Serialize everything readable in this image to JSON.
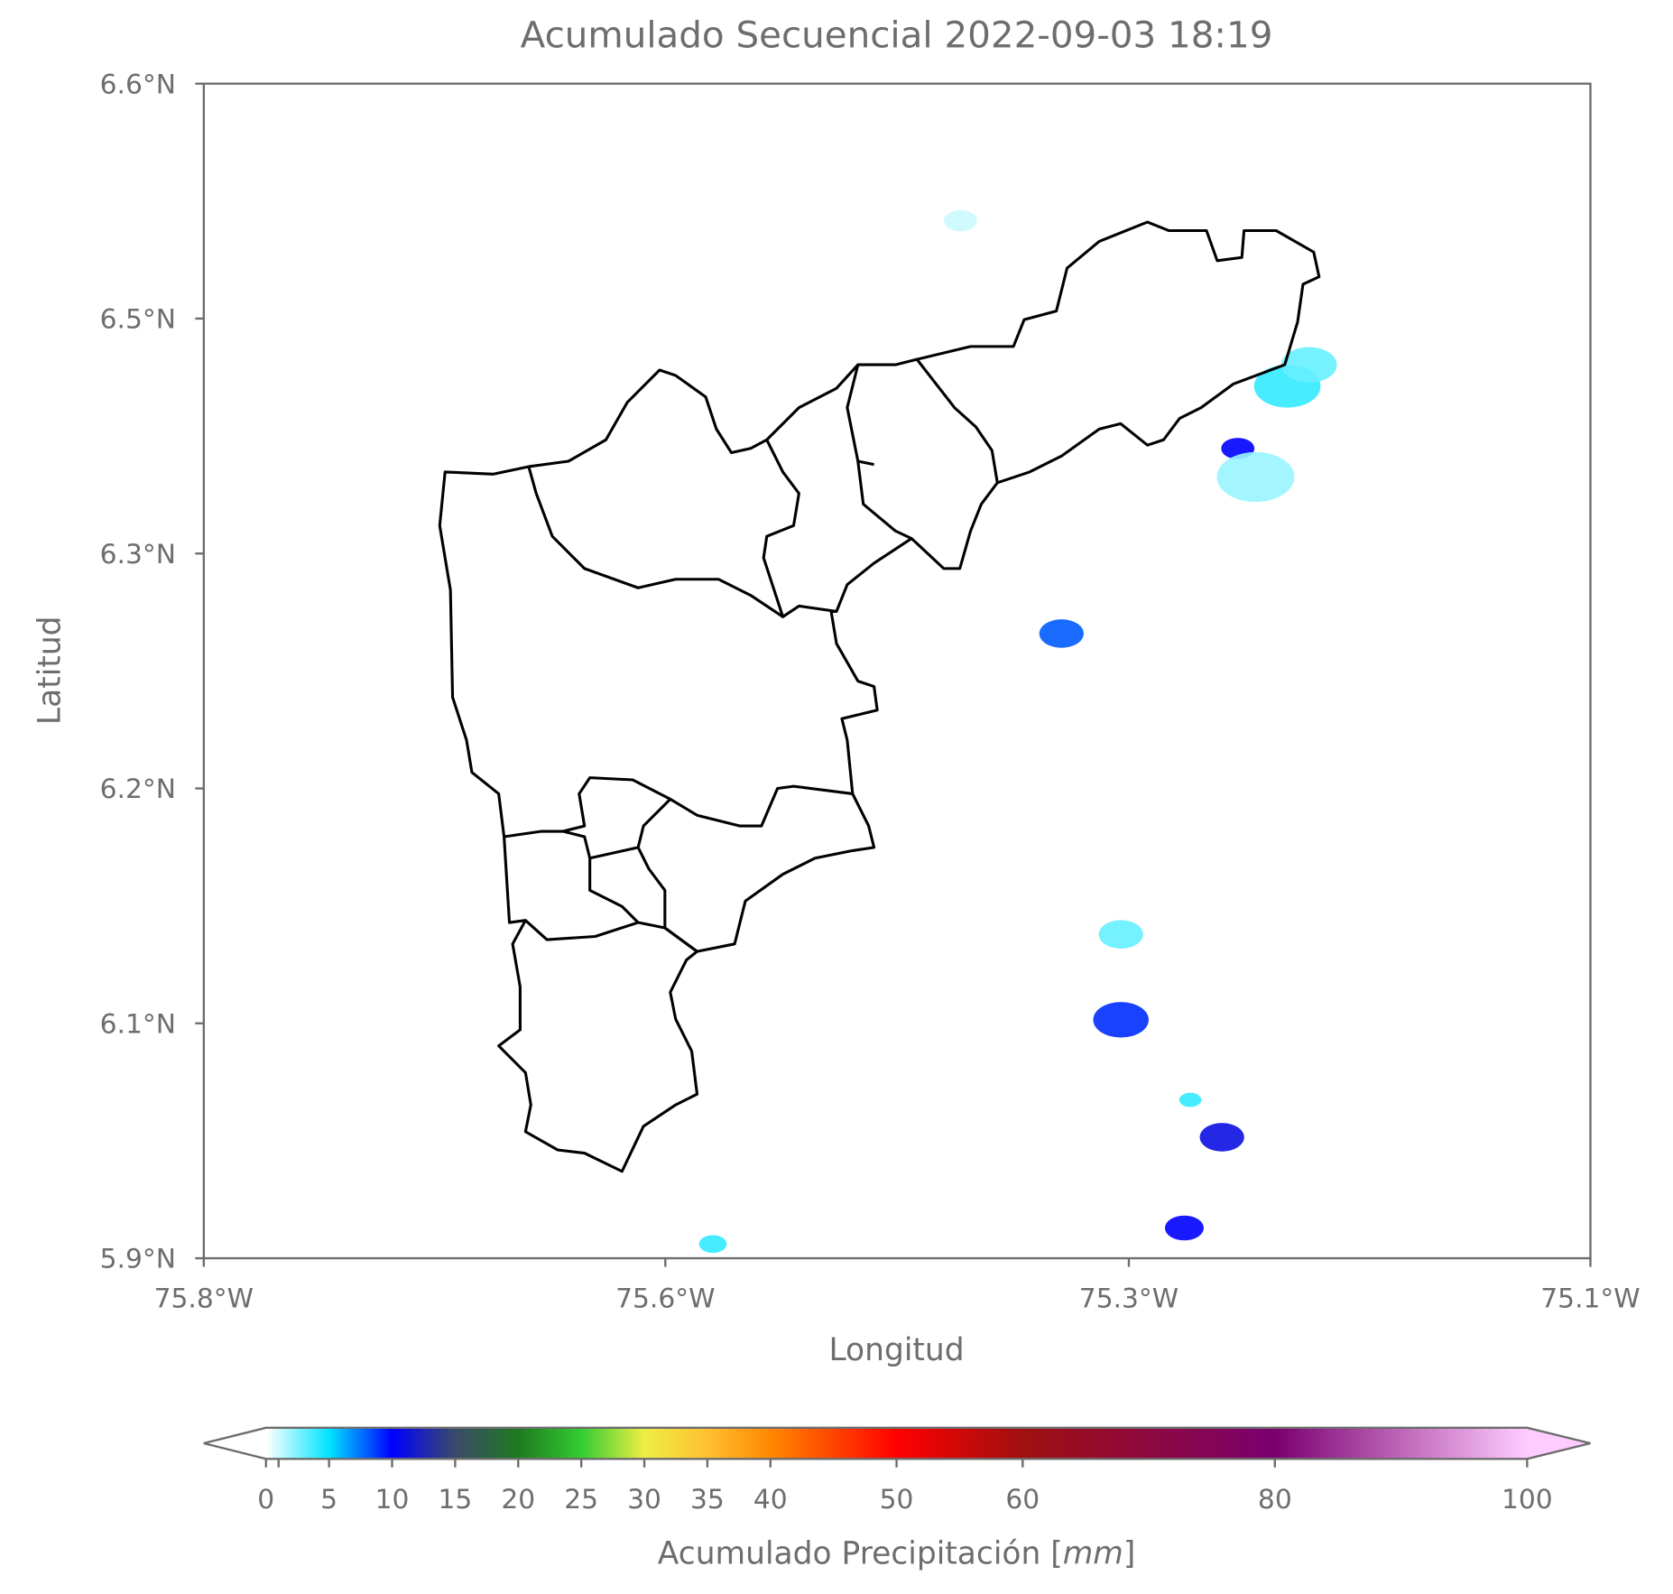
{
  "chart_data": {
    "type": "map",
    "title": "Acumulado Secuencial 2022-09-03 18:19",
    "x_label": "Longitud",
    "y_label": "Latitud",
    "xlim": [
      -75.8,
      -75.1
    ],
    "xticks": [
      {
        "value": -75.8,
        "label": "75.8°W"
      },
      {
        "value": -75.567,
        "label": "75.6°W"
      },
      {
        "value": -75.333,
        "label": "75.3°W"
      },
      {
        "value": -75.1,
        "label": "75.1°W"
      }
    ],
    "ylim": [
      5.94,
      6.6
    ],
    "yticks": [
      {
        "value": 5.94,
        "label": "5.9°N"
      },
      {
        "value": 6.072,
        "label": "6.1°N"
      },
      {
        "value": 6.204,
        "label": "6.2°N"
      },
      {
        "value": 6.336,
        "label": "6.3°N"
      },
      {
        "value": 6.468,
        "label": "6.5°N"
      },
      {
        "value": 6.6,
        "label": "6.6°N"
      }
    ],
    "colorbar": {
      "label_text": "Acumulado Precipitación [",
      "label_unit": "mm",
      "label_end": "]",
      "lim": [
        0,
        100
      ],
      "ticks": [
        0,
        5,
        10,
        15,
        20,
        25,
        30,
        35,
        40,
        50,
        60,
        80,
        100
      ],
      "minor_ticks": [
        1
      ],
      "colormap": [
        {
          "value": 0,
          "color": "#ffffff"
        },
        {
          "value": 5,
          "color": "#00e5ff"
        },
        {
          "value": 10,
          "color": "#0000ff"
        },
        {
          "value": 15,
          "color": "#3a4a6a"
        },
        {
          "value": 20,
          "color": "#1f7a1f"
        },
        {
          "value": 25,
          "color": "#33cc33"
        },
        {
          "value": 30,
          "color": "#eeee44"
        },
        {
          "value": 35,
          "color": "#ffc030"
        },
        {
          "value": 40,
          "color": "#ff8800"
        },
        {
          "value": 50,
          "color": "#ff0000"
        },
        {
          "value": 60,
          "color": "#a01010"
        },
        {
          "value": 80,
          "color": "#7a0070"
        },
        {
          "value": 100,
          "color": "#ffccff"
        }
      ]
    },
    "cells": [
      {
        "lon": -75.278,
        "lat": 6.395,
        "value": 10,
        "extent": 0.006
      },
      {
        "lon": -75.253,
        "lat": 6.43,
        "value": 4,
        "extent": 0.012
      },
      {
        "lon": -75.242,
        "lat": 6.442,
        "value": 3,
        "extent": 0.01
      },
      {
        "lon": -75.269,
        "lat": 6.379,
        "value": 2,
        "extent": 0.014
      },
      {
        "lon": -75.367,
        "lat": 6.291,
        "value": 8,
        "extent": 0.008
      },
      {
        "lon": -75.337,
        "lat": 6.074,
        "value": 9,
        "extent": 0.01
      },
      {
        "lon": -75.337,
        "lat": 6.122,
        "value": 3,
        "extent": 0.008
      },
      {
        "lon": -75.286,
        "lat": 6.008,
        "value": 11,
        "extent": 0.008
      },
      {
        "lon": -75.305,
        "lat": 5.957,
        "value": 10,
        "extent": 0.007
      },
      {
        "lon": -75.302,
        "lat": 6.029,
        "value": 4,
        "extent": 0.004
      },
      {
        "lon": -75.543,
        "lat": 5.948,
        "value": 4,
        "extent": 0.005
      },
      {
        "lon": -75.418,
        "lat": 6.523,
        "value": 1,
        "extent": 0.006
      }
    ]
  }
}
